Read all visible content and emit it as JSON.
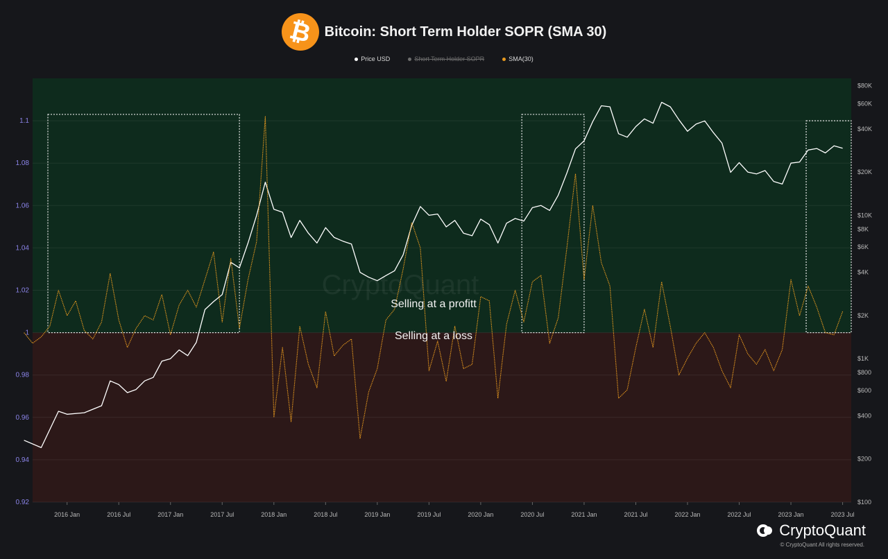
{
  "header": {
    "title": "Bitcoin: Short Term Holder SOPR (SMA 30)",
    "logo_symbol": "₿"
  },
  "legend": [
    {
      "label": "Price USD",
      "color": "#ffffff",
      "disabled": false
    },
    {
      "label": "Short Term Holder SOPR",
      "color": "#9a9a9a",
      "disabled": true
    },
    {
      "label": "SMA(30)",
      "color": "#e89a1f",
      "disabled": false
    }
  ],
  "annotations": {
    "profit": "Selling at a profitt",
    "loss": "Selling at a loss",
    "watermark": "CryptoQuant"
  },
  "brand": {
    "name": "CryptoQuant",
    "copyright": "© CryptoQuant All rights reserved."
  },
  "colors": {
    "profit_zone": "#0e2b1d",
    "loss_zone": "#2c1818",
    "price_line": "#ffffff",
    "sma_line": "#e89a1f",
    "left_axis": "#8b84e8",
    "right_axis": "#b9b9b9"
  },
  "chart_data": {
    "type": "line",
    "x_labels": [
      "2016 Jan",
      "2016 Jul",
      "2017 Jan",
      "2017 Jul",
      "2018 Jan",
      "2018 Jul",
      "2019 Jan",
      "2019 Jul",
      "2020 Jan",
      "2020 Jul",
      "2021 Jan",
      "2021 Jul",
      "2022 Jan",
      "2022 Jul",
      "2023 Jan",
      "2023 Jul"
    ],
    "xlim": [
      "2015-09",
      "2023-08"
    ],
    "left_axis": {
      "label": "",
      "ticks": [
        "0.92",
        "0.94",
        "0.96",
        "0.98",
        "1",
        "1.02",
        "1.04",
        "1.06",
        "1.08",
        "1.1"
      ],
      "ylim": [
        0.92,
        1.12
      ]
    },
    "right_axis": {
      "label": "",
      "scale": "log",
      "ticks": [
        "$100",
        "$200",
        "$400",
        "$600",
        "$800",
        "$1K",
        "$2K",
        "$4K",
        "$6K",
        "$8K",
        "$10K",
        "$20K",
        "$40K",
        "$60K",
        "$80K"
      ],
      "tick_values": [
        100,
        200,
        400,
        600,
        800,
        1000,
        2000,
        4000,
        6000,
        8000,
        10000,
        20000,
        40000,
        60000,
        80000
      ],
      "ylim": [
        100,
        90000
      ]
    },
    "zones": [
      {
        "name": "profit",
        "from": 1.0,
        "to": 1.12
      },
      {
        "name": "loss",
        "from": 0.92,
        "to": 1.0
      }
    ],
    "highlight_boxes": [
      {
        "x_start": "2015-09",
        "x_end": "2017-09",
        "y_top": 1.103
      },
      {
        "x_start": "2020-04",
        "x_end": "2021-01",
        "y_top": 1.103
      },
      {
        "x_start": "2023-01",
        "x_end": "2023-08",
        "y_top": 1.1
      }
    ],
    "series": [
      {
        "name": "Price USD",
        "axis": "right",
        "points": [
          [
            "2015-08",
            270
          ],
          [
            "2015-10",
            240
          ],
          [
            "2015-12",
            430
          ],
          [
            "2016-01",
            410
          ],
          [
            "2016-03",
            420
          ],
          [
            "2016-05",
            470
          ],
          [
            "2016-06",
            700
          ],
          [
            "2016-07",
            660
          ],
          [
            "2016-08",
            580
          ],
          [
            "2016-09",
            610
          ],
          [
            "2016-10",
            700
          ],
          [
            "2016-11",
            740
          ],
          [
            "2016-12",
            960
          ],
          [
            "2017-01",
            1000
          ],
          [
            "2017-02",
            1150
          ],
          [
            "2017-03",
            1050
          ],
          [
            "2017-04",
            1300
          ],
          [
            "2017-05",
            2200
          ],
          [
            "2017-06",
            2500
          ],
          [
            "2017-07",
            2800
          ],
          [
            "2017-08",
            4700
          ],
          [
            "2017-09",
            4300
          ],
          [
            "2017-10",
            6400
          ],
          [
            "2017-11",
            10000
          ],
          [
            "2017-12",
            17000
          ],
          [
            "2018-01",
            11000
          ],
          [
            "2018-02",
            10500
          ],
          [
            "2018-03",
            7000
          ],
          [
            "2018-04",
            9200
          ],
          [
            "2018-05",
            7500
          ],
          [
            "2018-06",
            6400
          ],
          [
            "2018-07",
            8200
          ],
          [
            "2018-08",
            7000
          ],
          [
            "2018-09",
            6600
          ],
          [
            "2018-10",
            6300
          ],
          [
            "2018-11",
            4000
          ],
          [
            "2018-12",
            3700
          ],
          [
            "2019-01",
            3500
          ],
          [
            "2019-02",
            3800
          ],
          [
            "2019-03",
            4100
          ],
          [
            "2019-04",
            5300
          ],
          [
            "2019-05",
            8500
          ],
          [
            "2019-06",
            11500
          ],
          [
            "2019-07",
            10000
          ],
          [
            "2019-08",
            10200
          ],
          [
            "2019-09",
            8300
          ],
          [
            "2019-10",
            9200
          ],
          [
            "2019-11",
            7500
          ],
          [
            "2019-12",
            7200
          ],
          [
            "2020-01",
            9400
          ],
          [
            "2020-02",
            8600
          ],
          [
            "2020-03",
            6400
          ],
          [
            "2020-04",
            8800
          ],
          [
            "2020-05",
            9500
          ],
          [
            "2020-06",
            9100
          ],
          [
            "2020-07",
            11300
          ],
          [
            "2020-08",
            11700
          ],
          [
            "2020-09",
            10800
          ],
          [
            "2020-10",
            13800
          ],
          [
            "2020-11",
            19700
          ],
          [
            "2020-12",
            29000
          ],
          [
            "2021-01",
            33000
          ],
          [
            "2021-02",
            45000
          ],
          [
            "2021-03",
            58000
          ],
          [
            "2021-04",
            57000
          ],
          [
            "2021-05",
            37000
          ],
          [
            "2021-06",
            35000
          ],
          [
            "2021-07",
            41500
          ],
          [
            "2021-08",
            47000
          ],
          [
            "2021-09",
            43800
          ],
          [
            "2021-10",
            61300
          ],
          [
            "2021-11",
            57000
          ],
          [
            "2021-12",
            46300
          ],
          [
            "2022-01",
            38500
          ],
          [
            "2022-02",
            43200
          ],
          [
            "2022-03",
            45500
          ],
          [
            "2022-04",
            37700
          ],
          [
            "2022-05",
            31800
          ],
          [
            "2022-06",
            19900
          ],
          [
            "2022-07",
            23300
          ],
          [
            "2022-08",
            20000
          ],
          [
            "2022-09",
            19400
          ],
          [
            "2022-10",
            20500
          ],
          [
            "2022-11",
            17200
          ],
          [
            "2022-12",
            16500
          ],
          [
            "2023-01",
            23100
          ],
          [
            "2023-02",
            23500
          ],
          [
            "2023-03",
            28500
          ],
          [
            "2023-04",
            29200
          ],
          [
            "2023-05",
            27200
          ],
          [
            "2023-06",
            30500
          ],
          [
            "2023-07",
            29300
          ]
        ]
      },
      {
        "name": "SMA(30)",
        "axis": "left",
        "points": [
          [
            "2015-08",
            1.0
          ],
          [
            "2015-09",
            0.995
          ],
          [
            "2015-10",
            0.998
          ],
          [
            "2015-11",
            1.003
          ],
          [
            "2015-12",
            1.02
          ],
          [
            "2016-01",
            1.008
          ],
          [
            "2016-02",
            1.015
          ],
          [
            "2016-03",
            1.001
          ],
          [
            "2016-04",
            0.997
          ],
          [
            "2016-05",
            1.005
          ],
          [
            "2016-06",
            1.028
          ],
          [
            "2016-07",
            1.006
          ],
          [
            "2016-08",
            0.993
          ],
          [
            "2016-09",
            1.002
          ],
          [
            "2016-10",
            1.008
          ],
          [
            "2016-11",
            1.006
          ],
          [
            "2016-12",
            1.018
          ],
          [
            "2017-01",
            0.999
          ],
          [
            "2017-02",
            1.013
          ],
          [
            "2017-03",
            1.02
          ],
          [
            "2017-04",
            1.012
          ],
          [
            "2017-05",
            1.025
          ],
          [
            "2017-06",
            1.038
          ],
          [
            "2017-07",
            1.005
          ],
          [
            "2017-08",
            1.035
          ],
          [
            "2017-09",
            1.002
          ],
          [
            "2017-10",
            1.025
          ],
          [
            "2017-11",
            1.043
          ],
          [
            "2017-12",
            1.102
          ],
          [
            "2018-01",
            0.96
          ],
          [
            "2018-02",
            0.993
          ],
          [
            "2018-03",
            0.958
          ],
          [
            "2018-04",
            1.003
          ],
          [
            "2018-05",
            0.985
          ],
          [
            "2018-06",
            0.974
          ],
          [
            "2018-07",
            1.01
          ],
          [
            "2018-08",
            0.989
          ],
          [
            "2018-09",
            0.994
          ],
          [
            "2018-10",
            0.997
          ],
          [
            "2018-11",
            0.95
          ],
          [
            "2018-12",
            0.972
          ],
          [
            "2019-01",
            0.983
          ],
          [
            "2019-02",
            1.006
          ],
          [
            "2019-03",
            1.011
          ],
          [
            "2019-04",
            1.03
          ],
          [
            "2019-05",
            1.052
          ],
          [
            "2019-06",
            1.04
          ],
          [
            "2019-07",
            0.982
          ],
          [
            "2019-08",
            0.996
          ],
          [
            "2019-09",
            0.977
          ],
          [
            "2019-10",
            1.003
          ],
          [
            "2019-11",
            0.983
          ],
          [
            "2019-12",
            0.985
          ],
          [
            "2020-01",
            1.017
          ],
          [
            "2020-02",
            1.015
          ],
          [
            "2020-03",
            0.969
          ],
          [
            "2020-04",
            1.004
          ],
          [
            "2020-05",
            1.02
          ],
          [
            "2020-06",
            1.005
          ],
          [
            "2020-07",
            1.024
          ],
          [
            "2020-08",
            1.027
          ],
          [
            "2020-09",
            0.995
          ],
          [
            "2020-10",
            1.007
          ],
          [
            "2020-11",
            1.04
          ],
          [
            "2020-12",
            1.075
          ],
          [
            "2021-01",
            1.025
          ],
          [
            "2021-02",
            1.06
          ],
          [
            "2021-03",
            1.033
          ],
          [
            "2021-04",
            1.022
          ],
          [
            "2021-05",
            0.969
          ],
          [
            "2021-06",
            0.973
          ],
          [
            "2021-07",
            0.993
          ],
          [
            "2021-08",
            1.011
          ],
          [
            "2021-09",
            0.993
          ],
          [
            "2021-10",
            1.024
          ],
          [
            "2021-11",
            1.003
          ],
          [
            "2021-12",
            0.98
          ],
          [
            "2022-01",
            0.988
          ],
          [
            "2022-02",
            0.995
          ],
          [
            "2022-03",
            1.0
          ],
          [
            "2022-04",
            0.993
          ],
          [
            "2022-05",
            0.982
          ],
          [
            "2022-06",
            0.974
          ],
          [
            "2022-07",
            0.999
          ],
          [
            "2022-08",
            0.99
          ],
          [
            "2022-09",
            0.985
          ],
          [
            "2022-10",
            0.992
          ],
          [
            "2022-11",
            0.982
          ],
          [
            "2022-12",
            0.992
          ],
          [
            "2023-01",
            1.025
          ],
          [
            "2023-02",
            1.008
          ],
          [
            "2023-03",
            1.022
          ],
          [
            "2023-04",
            1.012
          ],
          [
            "2023-05",
            1.0
          ],
          [
            "2023-06",
            0.999
          ],
          [
            "2023-07",
            1.01
          ]
        ]
      }
    ]
  }
}
